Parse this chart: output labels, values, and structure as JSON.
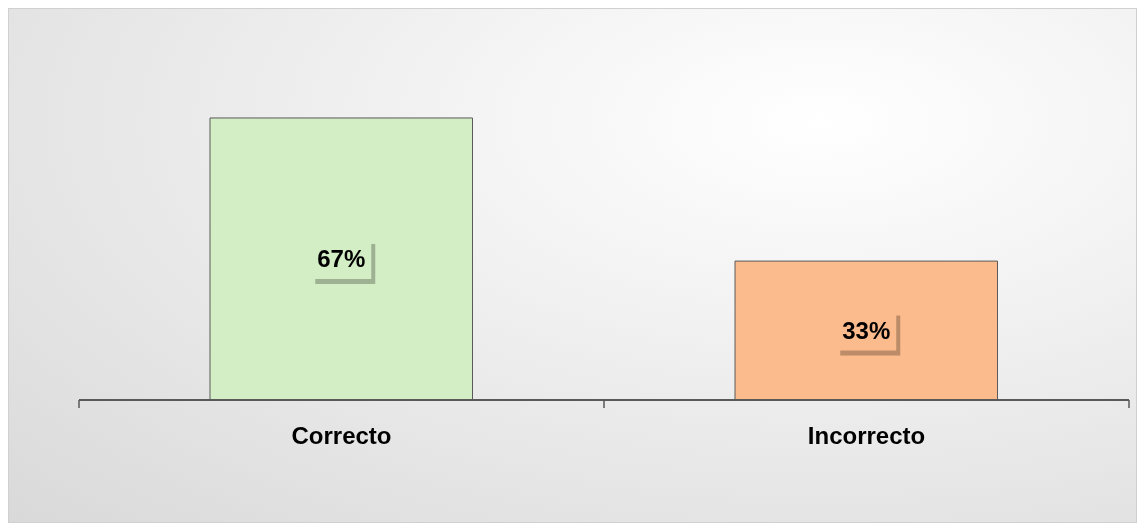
{
  "chart_data": {
    "type": "bar",
    "categories": [
      "Correcto",
      "Incorrecto"
    ],
    "values": [
      67,
      33
    ],
    "colors": [
      "#d3edc4",
      "#fbbb8c"
    ],
    "value_labels": [
      "67%",
      "33%"
    ]
  }
}
